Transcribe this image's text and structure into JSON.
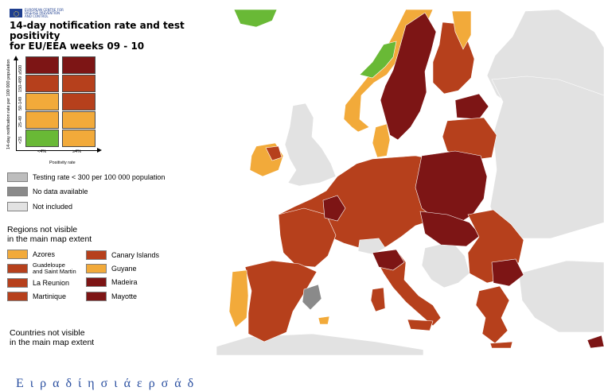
{
  "colors": {
    "darkred": "#7d1515",
    "red": "#b6401c",
    "orange": "#f2aa3a",
    "green": "#69b936",
    "grey_testing": "#bdbdbd",
    "grey_nodata": "#8a8a8a",
    "not_included": "#e2e2e2",
    "footer": "#2a4fa0"
  },
  "header": {
    "logo_icon": "ecdc-logo-icon",
    "logo_text_1": "EUROPEAN CENTRE FOR",
    "logo_text_2": "DISEASE PREVENTION",
    "logo_text_3": "AND CONTROL",
    "title_line1": "14-day notification rate and test positivity",
    "title_line2": "for EU/EEA weeks 09 - 10"
  },
  "matrix": {
    "y_axis_label": "14-day notification rate per 100 000 population",
    "x_axis_label": "Positivity rate",
    "rows": [
      "≥500",
      "150-499",
      "50-149",
      "25-49",
      "<25"
    ],
    "cols": [
      "<4%",
      "≥4%"
    ],
    "cells": [
      [
        "darkred",
        "darkred"
      ],
      [
        "red",
        "red"
      ],
      [
        "orange",
        "red"
      ],
      [
        "orange",
        "orange"
      ],
      [
        "green",
        "orange"
      ]
    ]
  },
  "legend": {
    "testing": "Testing rate < 300 per 100 000 population",
    "no_data": "No data available",
    "not_included": "Not included"
  },
  "regions": {
    "heading_line1": "Regions not visible",
    "heading_line2": "in the main map extent",
    "items": [
      {
        "label": "Azores",
        "color": "orange"
      },
      {
        "label_line1": "Guadeloupe",
        "label_line2": "and Saint Martin",
        "color": "red"
      },
      {
        "label": "La Reunion",
        "color": "red"
      },
      {
        "label": "Martinique",
        "color": "red"
      },
      {
        "label": "Canary Islands",
        "color": "red"
      },
      {
        "label": "Guyane",
        "color": "orange"
      },
      {
        "label": "Madeira",
        "color": "darkred"
      },
      {
        "label": "Mayotte",
        "color": "darkred"
      }
    ]
  },
  "countries_note": {
    "line1": "Countries not visible",
    "line2": "in the main map extent"
  },
  "footer": {
    "text": "Ε ι  ρ  α  δ ί  η  σ ι  ά  ε    ρ  σ  ά  δ"
  }
}
